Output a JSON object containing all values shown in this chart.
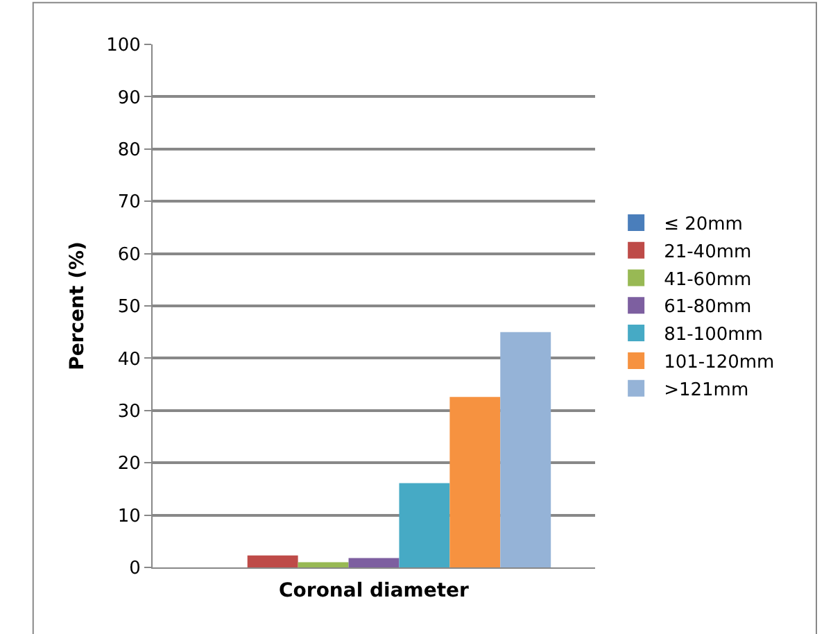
{
  "chart_data": {
    "type": "bar",
    "xlabel": "Coronal diameter",
    "ylabel": "Percent (%)",
    "categories": [
      null
    ],
    "series": [
      {
        "name": "≤ 20mm",
        "color": "#4a7ebb",
        "values": [
          0
        ]
      },
      {
        "name": "21-40mm",
        "color": "#be4b48",
        "values": [
          2.3
        ]
      },
      {
        "name": "41-60mm",
        "color": "#98b954",
        "values": [
          1.0
        ]
      },
      {
        "name": "61-80mm",
        "color": "#7d5fa0",
        "values": [
          1.8
        ]
      },
      {
        "name": "81-100mm",
        "color": "#46aac5",
        "values": [
          16.1
        ]
      },
      {
        "name": "101-120mm",
        "color": "#f69240",
        "values": [
          32.6
        ]
      },
      {
        "name": ">121mm",
        "color": "#95b3d7",
        "values": [
          45.0
        ]
      }
    ],
    "ylim": [
      0,
      100
    ],
    "yticks": [
      0,
      10,
      20,
      30,
      40,
      50,
      60,
      70,
      80,
      90,
      100
    ],
    "grid": "y",
    "legend": "right"
  }
}
